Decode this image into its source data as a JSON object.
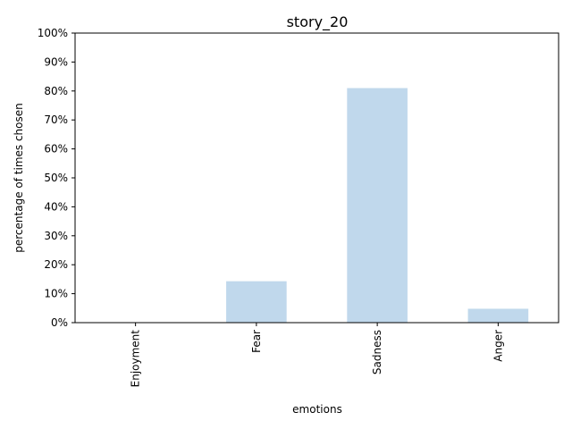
{
  "chart_data": {
    "type": "bar",
    "title": "story_20",
    "xlabel": "emotions",
    "ylabel": "percentage of times chosen",
    "categories": [
      "Enjoyment",
      "Fear",
      "Sadness",
      "Anger"
    ],
    "values": [
      0,
      14.3,
      81.0,
      4.8
    ],
    "ylim": [
      0,
      100
    ],
    "yticks": [
      "0%",
      "10%",
      "20%",
      "30%",
      "40%",
      "50%",
      "60%",
      "70%",
      "80%",
      "90%",
      "100%"
    ],
    "bar_color": "#c0d8ec",
    "grid": false,
    "legend": "none"
  }
}
